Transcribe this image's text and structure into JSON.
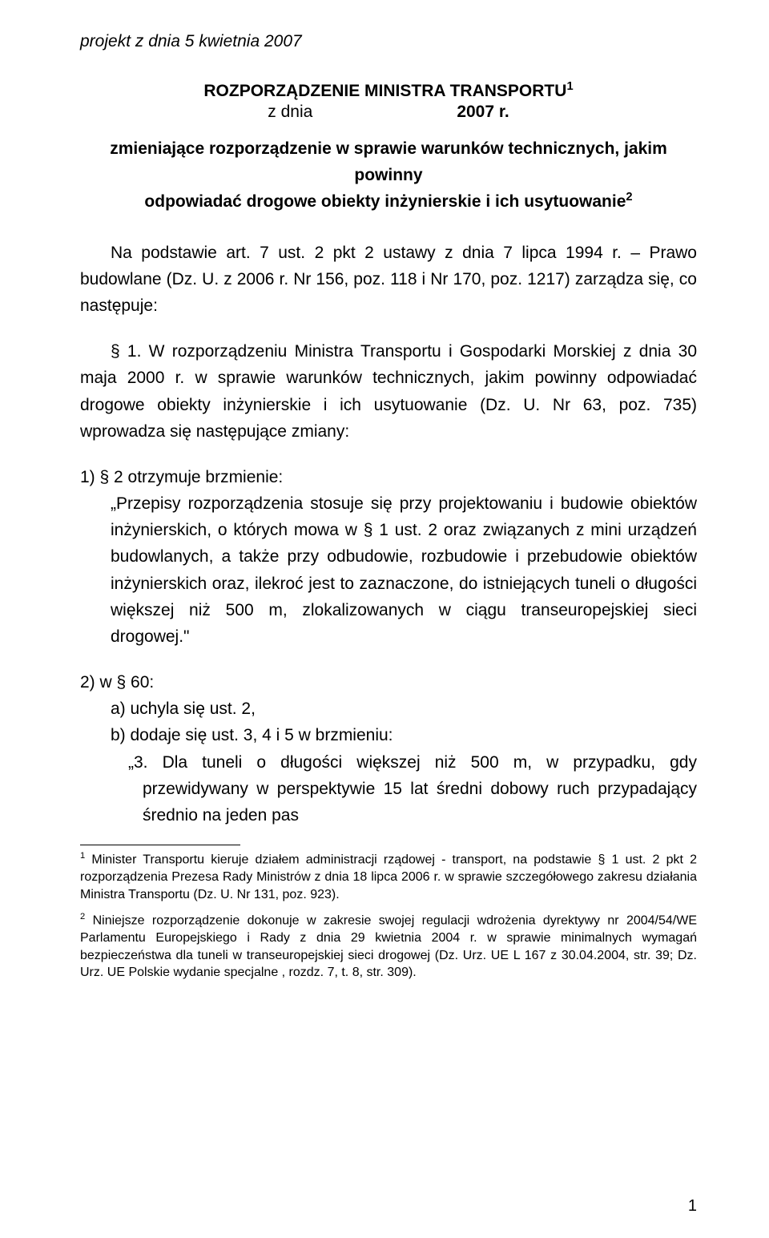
{
  "header": {
    "italic": "projekt z dnia 5 kwietnia 2007"
  },
  "title": {
    "line1": "ROZPORZĄDZENIE MINISTRA TRANSPORTU",
    "sup1": "1",
    "zdnia": "z dnia",
    "year": "2007 r.",
    "subtitle_l1": "zmieniające rozporządzenie w sprawie warunków technicznych, jakim powinny",
    "subtitle_l2": "odpowiadać drogowe obiekty inżynierskie i ich usytuowanie",
    "sup2": "2"
  },
  "p_basis": "Na podstawie art. 7 ust. 2 pkt 2 ustawy z dnia 7 lipca 1994 r. – Prawo budowlane (Dz. U. z 2006 r. Nr 156, poz. 118 i Nr 170, poz. 1217) zarządza się, co następuje:",
  "p_s1": "§ 1. W rozporządzeniu Ministra Transportu i Gospodarki Morskiej z dnia 30 maja 2000 r. w sprawie warunków technicznych, jakim powinny odpowiadać drogowe obiekty inżynierskie i ich usytuowanie (Dz. U. Nr 63, poz. 735) wprowadza się następujące zmiany:",
  "item1_intro": "1)  § 2 otrzymuje brzmienie:",
  "item1_quote": "„Przepisy rozporządzenia stosuje się przy projektowaniu i budowie obiektów inżynierskich, o których mowa w § 1 ust. 2 oraz związanych z mini urządzeń budowlanych, a także przy odbudowie, rozbudowie i przebudowie obiektów inżynierskich oraz, ilekroć jest to zaznaczone, do istniejących tuneli o długości większej niż 500 m, zlokalizowanych w ciągu transeuropejskiej sieci drogowej.\"",
  "item2_intro": "2)  w § 60:",
  "item2_a": "a)  uchyla się ust. 2,",
  "item2_b": "b)  dodaje się ust. 3,  4 i 5 w brzmieniu:",
  "item2_quote3": "„3. Dla tuneli o długości większej niż 500 m, w przypadku, gdy przewidywany w perspektywie 15 lat średni dobowy ruch przypadający średnio na jeden pas",
  "footnotes": {
    "f1_num": "1",
    "f1": " Minister Transportu kieruje działem administracji rządowej - transport, na podstawie § 1 ust. 2 pkt 2 rozporządzenia Prezesa Rady Ministrów z dnia 18 lipca 2006 r. w sprawie szczegółowego zakresu działania Ministra Transportu (Dz. U. Nr 131, poz. 923).",
    "f2_num": "2",
    "f2": " Niniejsze rozporządzenie dokonuje w zakresie swojej regulacji wdrożenia dyrektywy nr 2004/54/WE Parlamentu Europejskiego i Rady z dnia 29 kwietnia 2004 r. w sprawie minimalnych wymagań bezpieczeństwa dla tuneli w transeuropejskiej sieci drogowej (Dz. Urz. UE L 167 z 30.04.2004, str. 39; Dz. Urz. UE Polskie wydanie specjalne , rozdz. 7, t. 8, str. 309)."
  },
  "page_number": "1"
}
